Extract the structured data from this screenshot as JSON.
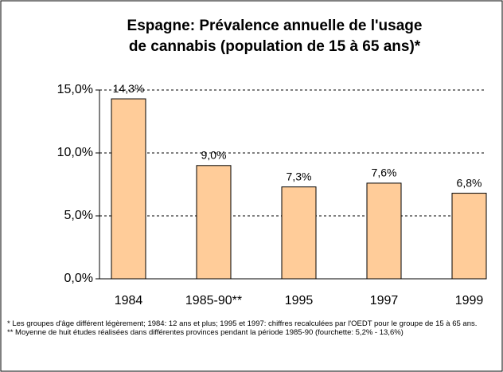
{
  "chart_data": {
    "type": "bar",
    "title": [
      "Espagne: Prévalence annuelle de l'usage",
      "de cannabis (population de 15 à 65 ans)*"
    ],
    "categories": [
      "1984",
      "1985-90**",
      "1995",
      "1997",
      "1999"
    ],
    "values": [
      14.3,
      9.0,
      7.3,
      7.6,
      6.8
    ],
    "value_labels": [
      "14,3%",
      "9,0%",
      "7,3%",
      "7,6%",
      "6,8%"
    ],
    "color": "#ffcc99",
    "ylim": [
      0,
      15
    ],
    "yticks": [
      {
        "value": 0,
        "label": "0,0%"
      },
      {
        "value": 5,
        "label": "5,0%"
      },
      {
        "value": 10,
        "label": "10,0%"
      },
      {
        "value": 15,
        "label": "15,0%"
      }
    ],
    "grid": true,
    "footnotes": [
      "* Les groupes d'âge différent légèrement; 1984: 12 ans et plus; 1995 et 1997: chiffres recalculées par l'OEDT pour le groupe de 15 à 65 ans.",
      "** Moyenne de huit études réalisées dans différentes provinces pendant la période 1985-90 (fourchette: 5,2% - 13,6%)"
    ]
  }
}
